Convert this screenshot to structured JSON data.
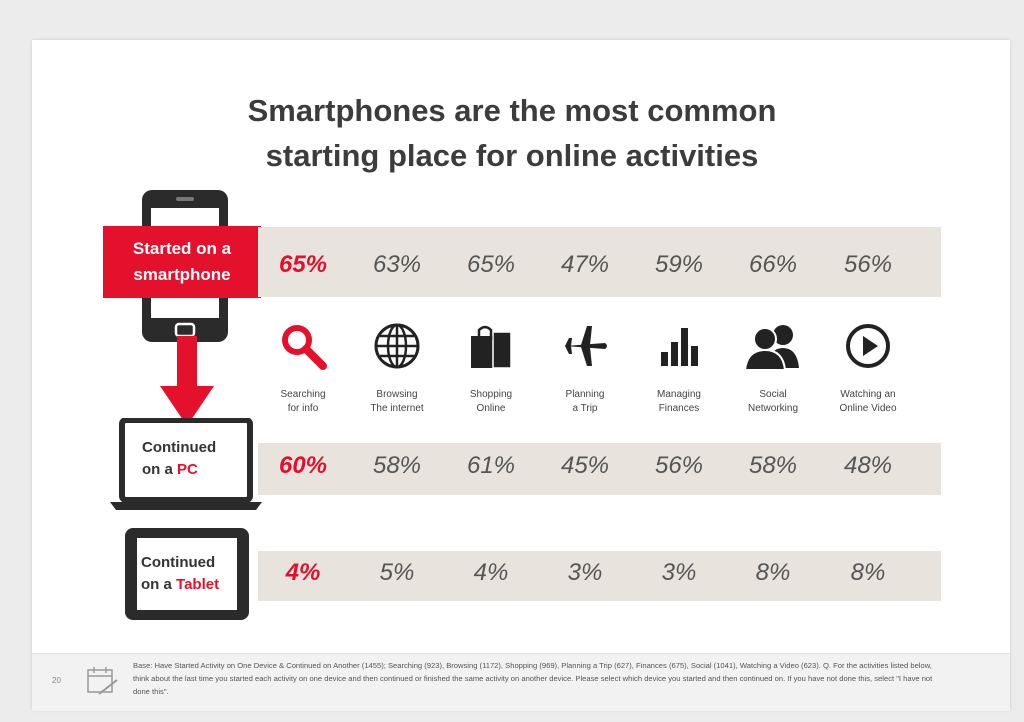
{
  "title": {
    "line1": "Smartphones are the most common",
    "line2": "starting place for online activities"
  },
  "devices": {
    "smartphone": {
      "line1": "Started on a",
      "line2": "smartphone"
    },
    "pc": {
      "line1": "Continued",
      "line2_prefix": "on a ",
      "line2_accent": "PC"
    },
    "tablet": {
      "line1": "Continued",
      "line2_prefix": "on a ",
      "line2_accent": "Tablet"
    }
  },
  "activities": [
    {
      "icon": "magnifier-icon",
      "line1": "Searching",
      "line2": "for info"
    },
    {
      "icon": "globe-icon",
      "line1": "Browsing",
      "line2": "The internet"
    },
    {
      "icon": "shopping-bag-icon",
      "line1": "Shopping",
      "line2": "Online"
    },
    {
      "icon": "airplane-icon",
      "line1": "Planning",
      "line2": "a Trip"
    },
    {
      "icon": "bar-chart-icon",
      "line1": "Managing",
      "line2": "Finances"
    },
    {
      "icon": "people-icon",
      "line1": "Social",
      "line2": "Networking"
    },
    {
      "icon": "play-button-icon",
      "line1": "Watching an",
      "line2": "Online Video"
    }
  ],
  "rows": {
    "smartphone": [
      "65%",
      "63%",
      "65%",
      "47%",
      "59%",
      "66%",
      "56%"
    ],
    "pc": [
      "60%",
      "58%",
      "61%",
      "45%",
      "56%",
      "58%",
      "48%"
    ],
    "tablet": [
      "4%",
      "5%",
      "4%",
      "3%",
      "3%",
      "8%",
      "8%"
    ]
  },
  "colors": {
    "accent": "#e3112c",
    "band": "#e8e4dd",
    "device": "#2b2b2b"
  },
  "footer": {
    "page_number": "20",
    "icon": "calendar-icon",
    "base_note": "Base: Have Started Activity on One Device & Continued on Another (1455); Searching (923), Browsing (1172), Shopping (969), Planning a Trip (627), Finances (675), Social (1041), Watching a Video (623). Q. For the activities listed below, think about the last time you started each activity on one device and then continued or finished the same activity on another device.  Please select which device you started and then continued on.  If you have not done this, select \"I have not done this\"."
  }
}
